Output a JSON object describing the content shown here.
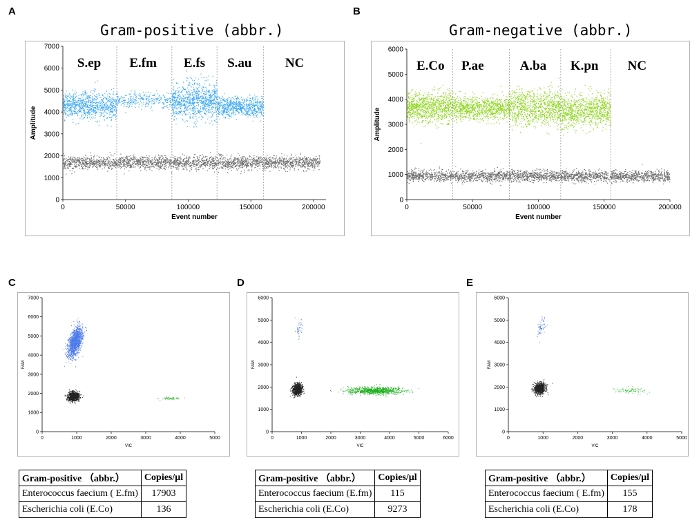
{
  "panels": {
    "A": "A",
    "B": "B",
    "C": "C",
    "D": "D",
    "E": "E"
  },
  "chart_data": [
    {
      "id": "A",
      "type": "scatter",
      "title": "Gram-positive (abbr.)",
      "xlabel": "Event number",
      "ylabel": "Amplitude",
      "xlim": [
        0,
        210000
      ],
      "ylim": [
        0,
        7000
      ],
      "xticks": [
        0,
        50000,
        100000,
        150000,
        200000
      ],
      "yticks": [
        0,
        1000,
        2000,
        3000,
        4000,
        5000,
        6000,
        7000
      ],
      "dividers": [
        43000,
        87000,
        123000,
        160000
      ],
      "segment_labels": [
        {
          "label": "S.ep",
          "x": 21000
        },
        {
          "label": "E.fm",
          "x": 64000
        },
        {
          "label": "E.fs",
          "x": 105000
        },
        {
          "label": "S.au",
          "x": 141000
        },
        {
          "label": "NC",
          "x": 185000
        }
      ],
      "positive_color": "#3fa9f5",
      "negative_color": "#6e6e6e",
      "positive_bands": [
        {
          "from": 0,
          "to": 43000,
          "center": 4300,
          "spread": 300,
          "density": 1.0
        },
        {
          "from": 43000,
          "to": 87000,
          "center": 4550,
          "spread": 180,
          "density": 0.3
        },
        {
          "from": 87000,
          "to": 123000,
          "center": 4500,
          "spread": 420,
          "density": 1.0
        },
        {
          "from": 123000,
          "to": 160000,
          "center": 4250,
          "spread": 220,
          "density": 0.8
        }
      ],
      "negative_band": {
        "from": 0,
        "to": 205000,
        "center": 1700,
        "spread": 150
      }
    },
    {
      "id": "B",
      "type": "scatter",
      "title": "Gram-negative (abbr.)",
      "xlabel": "Event number",
      "ylabel": "Amplitude",
      "xlim": [
        0,
        200000
      ],
      "ylim": [
        0,
        6000
      ],
      "xticks": [
        0,
        50000,
        100000,
        150000,
        200000
      ],
      "yticks": [
        0,
        1000,
        2000,
        3000,
        4000,
        5000,
        6000
      ],
      "dividers": [
        35000,
        78000,
        117000,
        155000
      ],
      "segment_labels": [
        {
          "label": "E.Co",
          "x": 18000
        },
        {
          "label": "P.ae",
          "x": 50000
        },
        {
          "label": "A.ba",
          "x": 96000
        },
        {
          "label": "K.pn",
          "x": 135000
        },
        {
          "label": "NC",
          "x": 175000
        }
      ],
      "positive_color": "#8fd61f",
      "negative_color": "#6e6e6e",
      "positive_bands": [
        {
          "from": 0,
          "to": 35000,
          "center": 3700,
          "spread": 300,
          "density": 1.0
        },
        {
          "from": 35000,
          "to": 78000,
          "center": 3650,
          "spread": 230,
          "density": 1.0
        },
        {
          "from": 78000,
          "to": 117000,
          "center": 3700,
          "spread": 350,
          "density": 1.0
        },
        {
          "from": 117000,
          "to": 155000,
          "center": 3550,
          "spread": 320,
          "density": 1.0
        }
      ],
      "negative_band": {
        "from": 0,
        "to": 200000,
        "center": 950,
        "spread": 110
      }
    },
    {
      "id": "C",
      "type": "scatter",
      "xlabel": "VIC",
      "ylabel": "FAM",
      "xlim": [
        0,
        5000
      ],
      "ylim": [
        0,
        7000
      ],
      "xticks": [
        0,
        1000,
        2000,
        3000,
        4000,
        5000
      ],
      "yticks": [
        0,
        1000,
        2000,
        3000,
        4000,
        5000,
        6000,
        7000
      ],
      "clusters": [
        {
          "cx": 950,
          "cy": 4700,
          "sx": 90,
          "sy": 380,
          "n": 1400,
          "color": "#4d7be8",
          "tilt": 0.28
        },
        {
          "cx": 900,
          "cy": 1850,
          "sx": 80,
          "sy": 120,
          "n": 900,
          "color": "#222222",
          "tilt": 0.1
        },
        {
          "cx": 3700,
          "cy": 1750,
          "sx": 150,
          "sy": 40,
          "n": 60,
          "color": "#3fbf3f",
          "tilt": 0.0
        }
      ]
    },
    {
      "id": "D",
      "type": "scatter",
      "xlabel": "VIC",
      "ylabel": "FAM",
      "xlim": [
        0,
        6000
      ],
      "ylim": [
        0,
        6000
      ],
      "xticks": [
        0,
        1000,
        2000,
        3000,
        4000,
        5000,
        6000
      ],
      "yticks": [
        0,
        1000,
        2000,
        3000,
        4000,
        5000,
        6000
      ],
      "clusters": [
        {
          "cx": 900,
          "cy": 4600,
          "sx": 60,
          "sy": 200,
          "n": 40,
          "color": "#4d7be8",
          "tilt": 0.2
        },
        {
          "cx": 850,
          "cy": 1900,
          "sx": 80,
          "sy": 130,
          "n": 900,
          "color": "#222222",
          "tilt": 0.15
        },
        {
          "cx": 3500,
          "cy": 1850,
          "sx": 450,
          "sy": 80,
          "n": 900,
          "color": "#20b020",
          "tilt": 0.05
        }
      ]
    },
    {
      "id": "E",
      "type": "scatter",
      "xlabel": "VIC",
      "ylabel": "FAM",
      "xlim": [
        0,
        5000
      ],
      "ylim": [
        0,
        6000
      ],
      "xticks": [
        0,
        1000,
        2000,
        3000,
        4000,
        5000
      ],
      "yticks": [
        0,
        1000,
        2000,
        3000,
        4000,
        5000,
        6000
      ],
      "clusters": [
        {
          "cx": 950,
          "cy": 4700,
          "sx": 60,
          "sy": 220,
          "n": 60,
          "color": "#4d7be8",
          "tilt": 0.2
        },
        {
          "cx": 900,
          "cy": 1950,
          "sx": 80,
          "sy": 120,
          "n": 900,
          "color": "#222222",
          "tilt": 0.12
        },
        {
          "cx": 3500,
          "cy": 1850,
          "sx": 220,
          "sy": 70,
          "n": 90,
          "color": "#3fbf3f",
          "tilt": 0.05
        }
      ]
    }
  ],
  "tables": [
    {
      "id": "C",
      "header": [
        "Gram-positive （abbr.）",
        "Copies/μl"
      ],
      "rows": [
        [
          "Enterococcus faecium ( E.fm)",
          "17903"
        ],
        [
          "Escherichia coli (E.Co)",
          "136"
        ]
      ]
    },
    {
      "id": "D",
      "header": [
        "Gram-positive （abbr.）",
        "Copies/μl"
      ],
      "rows": [
        [
          "Enterococcus faecium (E.fm)",
          "115"
        ],
        [
          "Escherichia coli (E.Co)",
          "9273"
        ]
      ]
    },
    {
      "id": "E",
      "header": [
        "Gram-positive （abbr.）",
        "Copies/μl"
      ],
      "rows": [
        [
          "Enterococcus faecium ( E.fm)",
          "155"
        ],
        [
          "Escherichia coli (E.Co)",
          "178"
        ]
      ]
    }
  ]
}
